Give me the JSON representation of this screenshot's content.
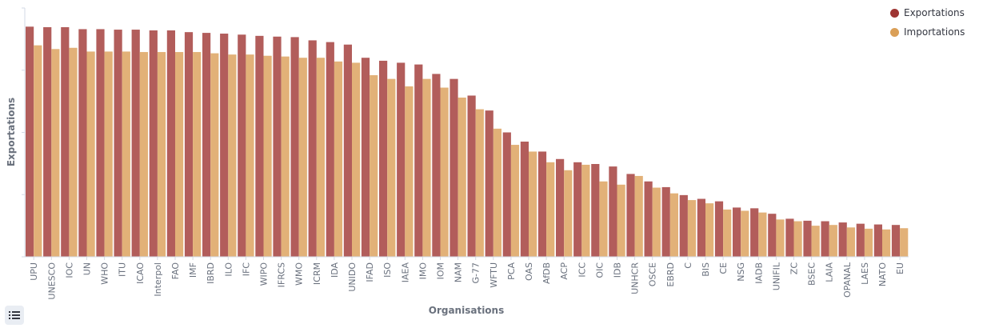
{
  "chart_data": {
    "type": "bar",
    "xlabel": "Organisations",
    "ylabel": "Exportations",
    "ylim": [
      0,
      100
    ],
    "grid": false,
    "legend_position": "top-right",
    "categories": [
      "UPU",
      "UNESCO",
      "IOC",
      "UN",
      "WHO",
      "ITU",
      "ICAO",
      "Interpol",
      "FAO",
      "IMF",
      "IBRD",
      "ILO",
      "IFC",
      "WIPO",
      "IFRCS",
      "WMO",
      "ICRM",
      "IDA",
      "UNIDO",
      "IFAD",
      "ISO",
      "IAEA",
      "IMO",
      "IOM",
      "NAM",
      "G-77",
      "WFTU",
      "PCA",
      "OAS",
      "AfDB",
      "ACP",
      "ICC",
      "OIC",
      "IDB",
      "UNHCR",
      "OSCE",
      "EBRD",
      "C",
      "BIS",
      "CE",
      "NSG",
      "IADB",
      "UNIFIL",
      "ZC",
      "BSEC",
      "LAIA",
      "OPANAL",
      "LAES",
      "NATO",
      "EU"
    ],
    "series": [
      {
        "name": "Exportations",
        "color": "#b25d5b",
        "values": [
          92.5,
          92.3,
          92.3,
          91.5,
          91.5,
          91.3,
          91.3,
          91.0,
          91.0,
          90.3,
          90.0,
          89.7,
          89.3,
          88.8,
          88.5,
          88.3,
          87.0,
          86.3,
          85.3,
          80.0,
          78.8,
          78.0,
          77.3,
          73.5,
          71.5,
          64.8,
          58.8,
          50.0,
          46.3,
          42.3,
          39.3,
          38.0,
          37.3,
          36.3,
          33.3,
          30.3,
          28.0,
          24.8,
          23.3,
          22.3,
          19.8,
          19.5,
          17.3,
          15.3,
          14.5,
          14.3,
          13.8,
          13.3,
          13.0,
          12.8
        ]
      },
      {
        "name": "Importations",
        "color": "#e2b178",
        "values": [
          85.0,
          83.5,
          84.0,
          82.5,
          82.5,
          82.5,
          82.3,
          82.3,
          82.3,
          82.3,
          81.8,
          81.3,
          81.3,
          80.8,
          80.5,
          80.0,
          80.0,
          78.5,
          78.0,
          73.0,
          71.5,
          68.5,
          71.5,
          68.0,
          64.0,
          59.3,
          51.5,
          45.0,
          42.3,
          38.0,
          34.8,
          37.0,
          30.3,
          29.0,
          32.5,
          27.8,
          25.5,
          22.8,
          21.5,
          19.0,
          18.5,
          17.8,
          15.0,
          14.3,
          12.5,
          12.8,
          11.8,
          11.3,
          11.0,
          11.5
        ]
      }
    ]
  }
}
